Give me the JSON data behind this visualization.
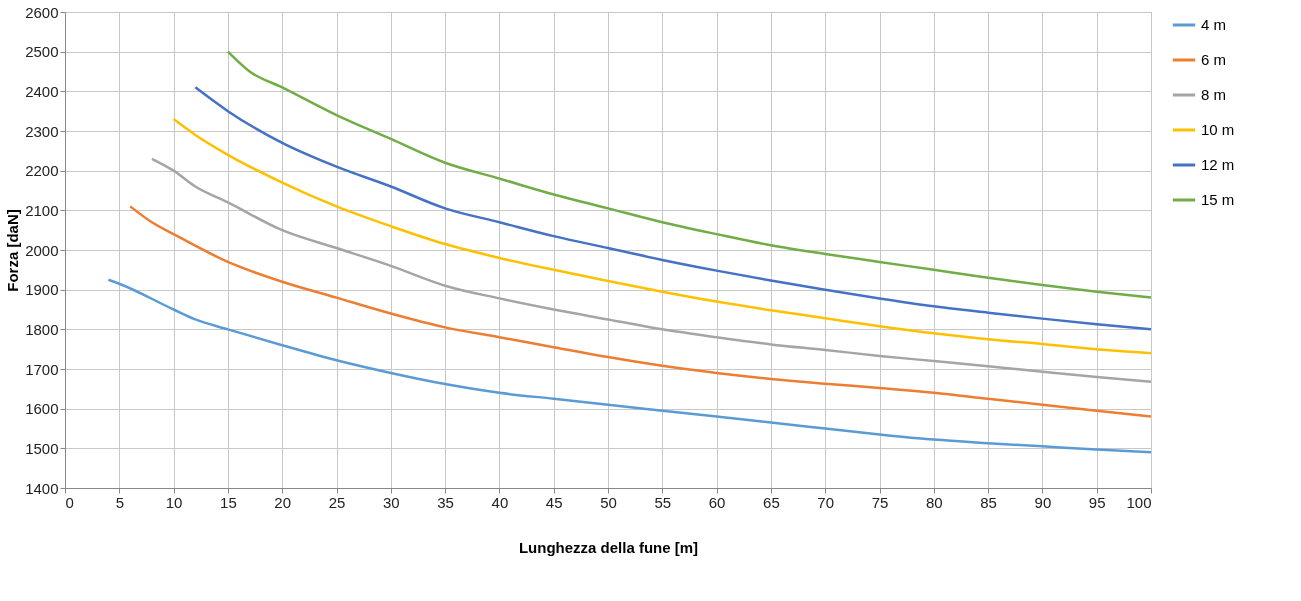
{
  "chart_data": {
    "type": "line",
    "xlabel": "Lunghezza della fune [m]",
    "ylabel": "Forza [daN]",
    "xlim": [
      0,
      100
    ],
    "xticks": [
      0,
      5,
      10,
      15,
      20,
      25,
      30,
      35,
      40,
      45,
      50,
      55,
      60,
      65,
      70,
      75,
      80,
      85,
      90,
      95,
      100
    ],
    "ylim": [
      1400,
      2600
    ],
    "yticks": [
      1400,
      1500,
      1600,
      1700,
      1800,
      1900,
      2000,
      2100,
      2200,
      2300,
      2400,
      2500,
      2600
    ],
    "grid": true,
    "legend": "right",
    "marker": "none",
    "line_style": "solid",
    "series": [
      {
        "name": "4 m",
        "color": "#5b9bd5",
        "x": [
          4,
          5,
          10,
          12,
          15,
          20,
          25,
          30,
          35,
          40,
          45,
          50,
          55,
          60,
          65,
          70,
          75,
          80,
          85,
          90,
          95,
          100
        ],
        "values": [
          1925,
          1915,
          1850,
          1825,
          1800,
          1760,
          1722,
          1690,
          1662,
          1640,
          1625,
          1610,
          1595,
          1580,
          1565,
          1550,
          1535,
          1522,
          1513,
          1505,
          1497,
          1490
        ]
      },
      {
        "name": "6 m",
        "color": "#ed7d31",
        "x": [
          6,
          8,
          10,
          15,
          20,
          25,
          30,
          35,
          40,
          45,
          50,
          55,
          60,
          65,
          70,
          75,
          80,
          85,
          90,
          95,
          100
        ],
        "values": [
          2110,
          2070,
          2040,
          1970,
          1920,
          1880,
          1840,
          1805,
          1780,
          1755,
          1730,
          1708,
          1690,
          1675,
          1663,
          1652,
          1640,
          1625,
          1610,
          1595,
          1580
        ]
      },
      {
        "name": "8 m",
        "color": "#a5a5a5",
        "x": [
          8,
          10,
          12,
          15,
          20,
          25,
          30,
          35,
          40,
          45,
          50,
          55,
          60,
          65,
          70,
          75,
          80,
          85,
          90,
          95,
          100
        ],
        "values": [
          2230,
          2200,
          2160,
          2120,
          2050,
          2005,
          1960,
          1910,
          1878,
          1850,
          1825,
          1800,
          1780,
          1762,
          1748,
          1733,
          1720,
          1707,
          1693,
          1680,
          1668
        ]
      },
      {
        "name": "10 m",
        "color": "#ffc000",
        "x": [
          10,
          12,
          15,
          20,
          25,
          30,
          35,
          40,
          45,
          50,
          55,
          60,
          65,
          70,
          75,
          80,
          85,
          90,
          95,
          100
        ],
        "values": [
          2330,
          2290,
          2240,
          2170,
          2110,
          2060,
          2015,
          1980,
          1950,
          1922,
          1895,
          1870,
          1848,
          1828,
          1808,
          1790,
          1775,
          1763,
          1750,
          1740
        ]
      },
      {
        "name": "12 m",
        "color": "#4472c4",
        "x": [
          12,
          15,
          20,
          25,
          30,
          35,
          40,
          45,
          50,
          55,
          60,
          65,
          70,
          75,
          80,
          85,
          90,
          95,
          100
        ],
        "values": [
          2410,
          2350,
          2270,
          2210,
          2160,
          2105,
          2070,
          2035,
          2005,
          1975,
          1948,
          1923,
          1900,
          1878,
          1858,
          1842,
          1827,
          1813,
          1800
        ]
      },
      {
        "name": "15 m",
        "color": "#70ad47",
        "x": [
          15,
          17,
          20,
          25,
          30,
          35,
          40,
          45,
          50,
          55,
          60,
          65,
          70,
          75,
          80,
          85,
          90,
          95,
          100
        ],
        "values": [
          2500,
          2450,
          2410,
          2340,
          2280,
          2220,
          2180,
          2140,
          2105,
          2070,
          2040,
          2012,
          1990,
          1970,
          1950,
          1930,
          1912,
          1895,
          1880
        ]
      }
    ]
  }
}
